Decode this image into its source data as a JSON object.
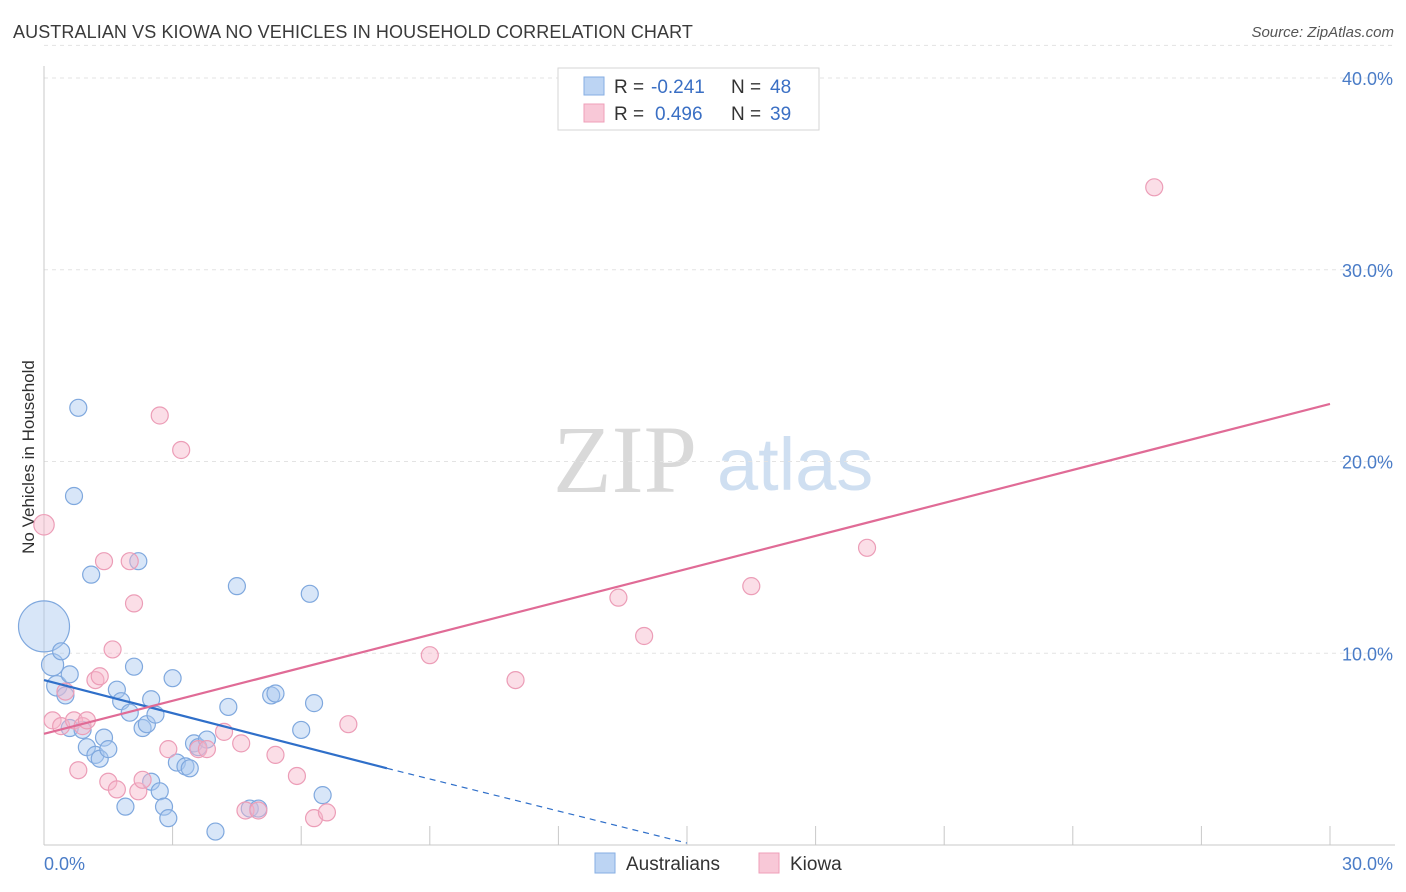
{
  "title": "AUSTRALIAN VS KIOWA NO VEHICLES IN HOUSEHOLD CORRELATION CHART",
  "source": "Source: ZipAtlas.com",
  "watermark": {
    "zip": "ZIP",
    "atlas": "atlas"
  },
  "legend_top": {
    "rows": [
      {
        "r_label": "R =",
        "r_value": "-0.241",
        "n_label": "N =",
        "n_value": "48",
        "color": "#a9c8ef"
      },
      {
        "r_label": "R =",
        "r_value": "0.496",
        "n_label": "N =",
        "n_value": "39",
        "color": "#f4b6c8"
      }
    ]
  },
  "legend_bottom": {
    "items": [
      "Australians",
      "Kiowa"
    ]
  },
  "chart_data": {
    "type": "scatter",
    "title": "AUSTRALIAN VS KIOWA NO VEHICLES IN HOUSEHOLD CORRELATION CHART",
    "xlabel": "",
    "ylabel": "No Vehicles in Household",
    "xlim": [
      0,
      30
    ],
    "ylim": [
      0,
      42
    ],
    "x_tick_labels": [
      "0.0%",
      "30.0%"
    ],
    "y_ticks": [
      10,
      20,
      30,
      40
    ],
    "y_tick_labels": [
      "10.0%",
      "20.0%",
      "30.0%",
      "40.0%"
    ],
    "grid": "horizontal dashed",
    "legend_placement": "top-center and bottom-center",
    "series": [
      {
        "name": "Australians",
        "color": "#6fa3e0",
        "line_color": "#2f6fc9",
        "r": -0.241,
        "n": 48,
        "trend": {
          "x": [
            0,
            8
          ],
          "y": [
            8.6,
            4.0
          ],
          "dashed_to": [
            15,
            0.1
          ]
        },
        "points": [
          {
            "x": 0.0,
            "y": 11.4,
            "s": 3
          },
          {
            "x": 0.2,
            "y": 9.4,
            "s": 1.3
          },
          {
            "x": 0.3,
            "y": 8.3,
            "s": 1.2
          },
          {
            "x": 0.4,
            "y": 10.1,
            "s": 1
          },
          {
            "x": 0.5,
            "y": 7.8,
            "s": 1
          },
          {
            "x": 0.6,
            "y": 6.1,
            "s": 1
          },
          {
            "x": 0.6,
            "y": 8.9,
            "s": 1
          },
          {
            "x": 0.8,
            "y": 22.8,
            "s": 1
          },
          {
            "x": 0.7,
            "y": 18.2,
            "s": 1
          },
          {
            "x": 0.9,
            "y": 6.0,
            "s": 1
          },
          {
            "x": 1.0,
            "y": 5.1,
            "s": 1
          },
          {
            "x": 1.1,
            "y": 14.1,
            "s": 1
          },
          {
            "x": 1.2,
            "y": 4.7,
            "s": 1
          },
          {
            "x": 1.3,
            "y": 4.5,
            "s": 1
          },
          {
            "x": 1.4,
            "y": 5.6,
            "s": 1
          },
          {
            "x": 1.5,
            "y": 5.0,
            "s": 1
          },
          {
            "x": 1.7,
            "y": 8.1,
            "s": 1
          },
          {
            "x": 1.8,
            "y": 7.5,
            "s": 1
          },
          {
            "x": 1.9,
            "y": 2.0,
            "s": 1
          },
          {
            "x": 2.0,
            "y": 6.9,
            "s": 1
          },
          {
            "x": 2.1,
            "y": 9.3,
            "s": 1
          },
          {
            "x": 2.2,
            "y": 14.8,
            "s": 1
          },
          {
            "x": 2.3,
            "y": 6.1,
            "s": 1
          },
          {
            "x": 2.4,
            "y": 6.3,
            "s": 1
          },
          {
            "x": 2.5,
            "y": 3.3,
            "s": 1
          },
          {
            "x": 2.5,
            "y": 7.6,
            "s": 1
          },
          {
            "x": 2.6,
            "y": 6.8,
            "s": 1
          },
          {
            "x": 2.7,
            "y": 2.8,
            "s": 1
          },
          {
            "x": 2.8,
            "y": 2.0,
            "s": 1
          },
          {
            "x": 2.9,
            "y": 1.4,
            "s": 1
          },
          {
            "x": 3.0,
            "y": 8.7,
            "s": 1
          },
          {
            "x": 3.1,
            "y": 4.3,
            "s": 1
          },
          {
            "x": 3.3,
            "y": 4.1,
            "s": 1
          },
          {
            "x": 3.4,
            "y": 4.0,
            "s": 1
          },
          {
            "x": 3.5,
            "y": 5.3,
            "s": 1
          },
          {
            "x": 3.6,
            "y": 5.1,
            "s": 1
          },
          {
            "x": 3.8,
            "y": 5.5,
            "s": 1
          },
          {
            "x": 4.0,
            "y": 0.7,
            "s": 1
          },
          {
            "x": 4.3,
            "y": 7.2,
            "s": 1
          },
          {
            "x": 4.5,
            "y": 13.5,
            "s": 1
          },
          {
            "x": 4.8,
            "y": 1.9,
            "s": 1
          },
          {
            "x": 5.0,
            "y": 1.9,
            "s": 1
          },
          {
            "x": 5.3,
            "y": 7.8,
            "s": 1
          },
          {
            "x": 5.4,
            "y": 7.9,
            "s": 1
          },
          {
            "x": 6.0,
            "y": 6.0,
            "s": 1
          },
          {
            "x": 6.2,
            "y": 13.1,
            "s": 1
          },
          {
            "x": 6.3,
            "y": 7.4,
            "s": 1
          },
          {
            "x": 6.5,
            "y": 2.6,
            "s": 1
          }
        ]
      },
      {
        "name": "Kiowa",
        "color": "#f2a3bd",
        "line_color": "#e06b96",
        "r": 0.496,
        "n": 39,
        "trend": {
          "x": [
            0,
            30
          ],
          "y": [
            5.8,
            23.0
          ]
        },
        "points": [
          {
            "x": 0.0,
            "y": 16.7,
            "s": 1.2
          },
          {
            "x": 0.2,
            "y": 6.5,
            "s": 1
          },
          {
            "x": 0.4,
            "y": 6.2,
            "s": 1
          },
          {
            "x": 0.5,
            "y": 8.0,
            "s": 1
          },
          {
            "x": 0.7,
            "y": 6.5,
            "s": 1
          },
          {
            "x": 0.8,
            "y": 3.9,
            "s": 1
          },
          {
            "x": 0.9,
            "y": 6.2,
            "s": 1
          },
          {
            "x": 1.0,
            "y": 6.5,
            "s": 1
          },
          {
            "x": 1.2,
            "y": 8.6,
            "s": 1
          },
          {
            "x": 1.3,
            "y": 8.8,
            "s": 1
          },
          {
            "x": 1.4,
            "y": 14.8,
            "s": 1
          },
          {
            "x": 1.5,
            "y": 3.3,
            "s": 1
          },
          {
            "x": 1.6,
            "y": 10.2,
            "s": 1
          },
          {
            "x": 1.7,
            "y": 2.9,
            "s": 1
          },
          {
            "x": 2.0,
            "y": 14.8,
            "s": 1
          },
          {
            "x": 2.1,
            "y": 12.6,
            "s": 1
          },
          {
            "x": 2.2,
            "y": 2.8,
            "s": 1
          },
          {
            "x": 2.3,
            "y": 3.4,
            "s": 1
          },
          {
            "x": 2.7,
            "y": 22.4,
            "s": 1
          },
          {
            "x": 2.9,
            "y": 5.0,
            "s": 1
          },
          {
            "x": 3.2,
            "y": 20.6,
            "s": 1
          },
          {
            "x": 3.6,
            "y": 5.0,
            "s": 1
          },
          {
            "x": 3.8,
            "y": 5.0,
            "s": 1
          },
          {
            "x": 4.2,
            "y": 5.9,
            "s": 1
          },
          {
            "x": 4.6,
            "y": 5.3,
            "s": 1
          },
          {
            "x": 4.7,
            "y": 1.8,
            "s": 1
          },
          {
            "x": 5.0,
            "y": 1.8,
            "s": 1
          },
          {
            "x": 5.4,
            "y": 4.7,
            "s": 1
          },
          {
            "x": 5.9,
            "y": 3.6,
            "s": 1
          },
          {
            "x": 6.3,
            "y": 1.4,
            "s": 1
          },
          {
            "x": 6.6,
            "y": 1.7,
            "s": 1
          },
          {
            "x": 7.1,
            "y": 6.3,
            "s": 1
          },
          {
            "x": 9.0,
            "y": 9.9,
            "s": 1
          },
          {
            "x": 11.0,
            "y": 8.6,
            "s": 1
          },
          {
            "x": 13.4,
            "y": 12.9,
            "s": 1
          },
          {
            "x": 14.0,
            "y": 10.9,
            "s": 1
          },
          {
            "x": 16.5,
            "y": 13.5,
            "s": 1
          },
          {
            "x": 19.2,
            "y": 15.5,
            "s": 1
          },
          {
            "x": 25.9,
            "y": 34.3,
            "s": 1
          }
        ]
      }
    ]
  }
}
